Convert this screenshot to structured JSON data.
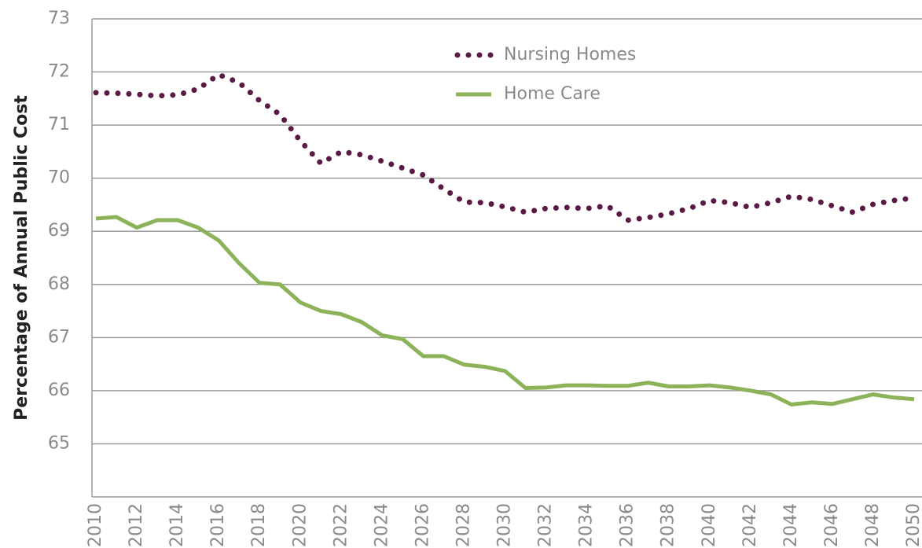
{
  "chart_data": {
    "type": "line",
    "y_label": "Percentage of Annual Public Cost",
    "x": [
      2010,
      2011,
      2012,
      2013,
      2014,
      2015,
      2016,
      2017,
      2018,
      2019,
      2020,
      2021,
      2022,
      2023,
      2024,
      2025,
      2026,
      2027,
      2028,
      2029,
      2030,
      2031,
      2032,
      2033,
      2034,
      2035,
      2036,
      2037,
      2038,
      2039,
      2040,
      2041,
      2042,
      2043,
      2044,
      2045,
      2046,
      2047,
      2048,
      2049,
      2050
    ],
    "series": [
      {
        "name": "Nursing Homes",
        "color": "#5a1a45",
        "style": "dotted",
        "values": [
          71.61,
          71.6,
          71.58,
          71.55,
          71.57,
          71.68,
          71.95,
          71.8,
          71.46,
          71.2,
          70.7,
          70.28,
          70.5,
          70.44,
          70.32,
          70.19,
          70.06,
          69.8,
          69.55,
          69.54,
          69.46,
          69.36,
          69.43,
          69.45,
          69.43,
          69.48,
          69.21,
          69.26,
          69.33,
          69.43,
          69.58,
          69.54,
          69.45,
          69.54,
          69.66,
          69.6,
          69.48,
          69.36,
          69.51,
          69.58,
          69.63
        ]
      },
      {
        "name": "Home Care",
        "color": "#8db35a",
        "style": "solid",
        "values": [
          69.24,
          69.27,
          69.07,
          69.21,
          69.21,
          69.07,
          68.83,
          68.4,
          68.03,
          68.0,
          67.66,
          67.5,
          67.44,
          67.29,
          67.04,
          66.97,
          66.65,
          66.65,
          66.49,
          66.45,
          66.37,
          66.05,
          66.06,
          66.1,
          66.1,
          66.09,
          66.09,
          66.15,
          66.08,
          66.08,
          66.1,
          66.06,
          66.0,
          65.93,
          65.74,
          65.78,
          65.75,
          65.84,
          65.93,
          65.87,
          65.84
        ]
      }
    ],
    "xlim": [
      2010,
      2050
    ],
    "xticks": [
      2010,
      2012,
      2014,
      2016,
      2018,
      2020,
      2022,
      2024,
      2026,
      2028,
      2030,
      2032,
      2034,
      2036,
      2038,
      2040,
      2042,
      2044,
      2046,
      2048,
      2050
    ],
    "ylim": [
      64,
      73
    ],
    "yticks": [
      65,
      66,
      67,
      68,
      69,
      70,
      71,
      72,
      73
    ],
    "grid": true,
    "legend": "top"
  }
}
